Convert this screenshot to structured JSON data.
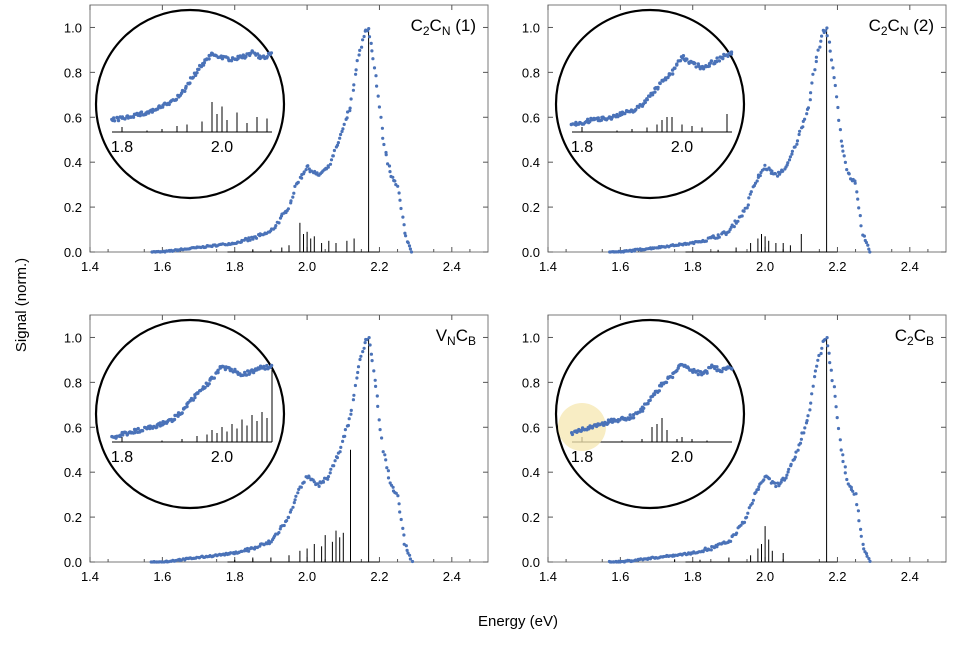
{
  "figure": {
    "xlabel": "Energy (eV)",
    "ylabel": "Signal (norm.)"
  },
  "chart_data": [
    {
      "type": "scatter",
      "id": "c2cn1",
      "title": "C₂C_N (1)",
      "title_main": "C",
      "title_sub1": "2",
      "title_mid": "C",
      "title_sub2": "N",
      "title_suffix": " (1)",
      "xlim": [
        1.4,
        2.5
      ],
      "ylim": [
        0,
        1.1
      ],
      "xticks": [
        "1.4",
        "1.6",
        "1.8",
        "2.0",
        "2.2",
        "2.4"
      ],
      "yticks": [
        "0.0",
        "0.2",
        "0.4",
        "0.6",
        "0.8",
        "1.0"
      ],
      "series": [
        {
          "name": "measured spectrum",
          "kind": "points",
          "x": [
            1.57,
            1.6,
            1.65,
            1.7,
            1.75,
            1.8,
            1.85,
            1.9,
            1.95,
            1.97,
            2.0,
            2.03,
            2.06,
            2.09,
            2.12,
            2.14,
            2.16,
            2.17,
            2.19,
            2.21,
            2.23,
            2.25,
            2.27,
            2.29
          ],
          "y": [
            0.0,
            0.0,
            0.01,
            0.02,
            0.03,
            0.04,
            0.06,
            0.09,
            0.2,
            0.3,
            0.38,
            0.34,
            0.38,
            0.5,
            0.65,
            0.85,
            0.98,
            1.0,
            0.78,
            0.5,
            0.35,
            0.3,
            0.08,
            0.0
          ]
        },
        {
          "name": "calculated lines",
          "kind": "sticks",
          "x": [
            1.85,
            1.9,
            1.93,
            1.95,
            1.98,
            1.99,
            2.0,
            2.01,
            2.02,
            2.04,
            2.06,
            2.08,
            2.11,
            2.13,
            2.17
          ],
          "y": [
            0.01,
            0.01,
            0.02,
            0.03,
            0.13,
            0.08,
            0.09,
            0.06,
            0.07,
            0.04,
            0.05,
            0.04,
            0.05,
            0.06,
            1.0
          ]
        }
      ],
      "inset": {
        "xticks": [
          "1.8",
          "2.0"
        ],
        "series": [
          {
            "name": "measured spectrum (zoom)",
            "kind": "points",
            "x": [
              1.78,
              1.8,
              1.82,
              1.84,
              1.86,
              1.88,
              1.9,
              1.92,
              1.94,
              1.96,
              1.98,
              2.0,
              2.02,
              2.04,
              2.06,
              2.08,
              2.1
            ],
            "y": [
              0.08,
              0.09,
              0.11,
              0.12,
              0.14,
              0.17,
              0.2,
              0.26,
              0.36,
              0.45,
              0.52,
              0.5,
              0.48,
              0.5,
              0.53,
              0.49,
              0.52
            ]
          },
          {
            "name": "calculated lines (zoom)",
            "kind": "sticks",
            "x": [
              1.85,
              1.88,
              1.91,
              1.93,
              1.96,
              1.98,
              1.99,
              2.0,
              2.01,
              2.03,
              2.05,
              2.07,
              2.09
            ],
            "y": [
              0.01,
              0.02,
              0.04,
              0.05,
              0.07,
              0.2,
              0.12,
              0.17,
              0.08,
              0.13,
              0.06,
              0.1,
              0.09
            ]
          }
        ]
      }
    },
    {
      "type": "scatter",
      "id": "c2cn2",
      "title": "C₂C_N (2)",
      "title_main": "C",
      "title_sub1": "2",
      "title_mid": "C",
      "title_sub2": "N",
      "title_suffix": " (2)",
      "xlim": [
        1.4,
        2.5
      ],
      "ylim": [
        0,
        1.1
      ],
      "xticks": [
        "1.4",
        "1.6",
        "1.8",
        "2.0",
        "2.2",
        "2.4"
      ],
      "yticks": [
        "0.0",
        "0.2",
        "0.4",
        "0.6",
        "0.8",
        "1.0"
      ],
      "series": [
        {
          "name": "measured spectrum",
          "kind": "points",
          "x": [
            1.57,
            1.6,
            1.65,
            1.7,
            1.75,
            1.8,
            1.85,
            1.9,
            1.95,
            1.97,
            2.0,
            2.03,
            2.06,
            2.09,
            2.12,
            2.14,
            2.16,
            2.17,
            2.19,
            2.21,
            2.23,
            2.25,
            2.27,
            2.29
          ],
          "y": [
            0.0,
            0.0,
            0.01,
            0.02,
            0.03,
            0.04,
            0.06,
            0.09,
            0.2,
            0.3,
            0.38,
            0.34,
            0.38,
            0.5,
            0.65,
            0.85,
            0.98,
            1.0,
            0.78,
            0.5,
            0.35,
            0.3,
            0.08,
            0.0
          ]
        },
        {
          "name": "calculated lines",
          "kind": "sticks",
          "x": [
            1.87,
            1.92,
            1.96,
            1.98,
            1.99,
            2.0,
            2.01,
            2.03,
            2.05,
            2.07,
            2.1,
            2.17
          ],
          "y": [
            0.01,
            0.02,
            0.04,
            0.06,
            0.08,
            0.07,
            0.05,
            0.04,
            0.04,
            0.03,
            0.08,
            1.0
          ]
        }
      ],
      "inset": {
        "xticks": [
          "1.8",
          "2.0"
        ],
        "series": [
          {
            "name": "measured spectrum (zoom)",
            "kind": "points",
            "x": [
              1.78,
              1.8,
              1.82,
              1.84,
              1.86,
              1.88,
              1.9,
              1.92,
              1.94,
              1.96,
              1.98,
              2.0,
              2.02,
              2.04,
              2.06,
              2.08,
              2.1
            ],
            "y": [
              0.05,
              0.06,
              0.08,
              0.09,
              0.1,
              0.12,
              0.14,
              0.18,
              0.26,
              0.33,
              0.4,
              0.5,
              0.46,
              0.43,
              0.46,
              0.5,
              0.52
            ]
          },
          {
            "name": "calculated lines (zoom)",
            "kind": "sticks",
            "x": [
              1.87,
              1.9,
              1.93,
              1.95,
              1.96,
              1.97,
              1.98,
              2.0,
              2.02,
              2.04,
              2.09
            ],
            "y": [
              0.01,
              0.02,
              0.03,
              0.05,
              0.08,
              0.1,
              0.1,
              0.05,
              0.04,
              0.03,
              0.12
            ]
          }
        ]
      }
    },
    {
      "type": "scatter",
      "id": "vncb",
      "title": "V_NC_B",
      "title_main": "V",
      "title_sub1": "N",
      "title_mid": "C",
      "title_sub2": "B",
      "title_suffix": "",
      "xlim": [
        1.4,
        2.5
      ],
      "ylim": [
        0,
        1.1
      ],
      "xticks": [
        "1.4",
        "1.6",
        "1.8",
        "2.0",
        "2.2",
        "2.4"
      ],
      "yticks": [
        "0.0",
        "0.2",
        "0.4",
        "0.6",
        "0.8",
        "1.0"
      ],
      "series": [
        {
          "name": "measured spectrum",
          "kind": "points",
          "x": [
            1.57,
            1.6,
            1.65,
            1.7,
            1.75,
            1.8,
            1.85,
            1.9,
            1.95,
            1.97,
            2.0,
            2.03,
            2.06,
            2.09,
            2.12,
            2.14,
            2.16,
            2.17,
            2.19,
            2.21,
            2.23,
            2.25,
            2.27,
            2.29
          ],
          "y": [
            0.0,
            0.0,
            0.01,
            0.02,
            0.03,
            0.04,
            0.06,
            0.09,
            0.2,
            0.3,
            0.38,
            0.34,
            0.38,
            0.5,
            0.65,
            0.85,
            0.98,
            1.0,
            0.78,
            0.5,
            0.35,
            0.3,
            0.08,
            0.0
          ]
        },
        {
          "name": "calculated lines",
          "kind": "sticks",
          "x": [
            1.8,
            1.85,
            1.9,
            1.95,
            1.98,
            2.0,
            2.02,
            2.04,
            2.05,
            2.07,
            2.08,
            2.09,
            2.1,
            2.12,
            2.17
          ],
          "y": [
            0.01,
            0.02,
            0.02,
            0.03,
            0.05,
            0.06,
            0.08,
            0.07,
            0.12,
            0.09,
            0.14,
            0.11,
            0.13,
            0.5,
            1.0
          ]
        }
      ],
      "inset": {
        "xticks": [
          "1.8",
          "2.0"
        ],
        "series": [
          {
            "name": "measured spectrum (zoom)",
            "kind": "points",
            "x": [
              1.78,
              1.8,
              1.82,
              1.84,
              1.86,
              1.88,
              1.9,
              1.92,
              1.94,
              1.96,
              1.98,
              2.0,
              2.02,
              2.04,
              2.06,
              2.08,
              2.1
            ],
            "y": [
              0.03,
              0.05,
              0.07,
              0.08,
              0.1,
              0.12,
              0.15,
              0.2,
              0.28,
              0.35,
              0.42,
              0.5,
              0.48,
              0.45,
              0.47,
              0.5,
              0.5
            ]
          },
          {
            "name": "calculated lines (zoom)",
            "kind": "sticks",
            "x": [
              1.88,
              1.92,
              1.95,
              1.97,
              1.98,
              1.99,
              2.0,
              2.01,
              2.02,
              2.03,
              2.04,
              2.05,
              2.06,
              2.07,
              2.08,
              2.09,
              2.1
            ],
            "y": [
              0.01,
              0.02,
              0.04,
              0.05,
              0.08,
              0.06,
              0.1,
              0.07,
              0.12,
              0.09,
              0.15,
              0.11,
              0.18,
              0.14,
              0.2,
              0.16,
              0.48
            ]
          }
        ]
      }
    },
    {
      "type": "scatter",
      "id": "c2cb",
      "title": "C₂C_B",
      "title_main": "C",
      "title_sub1": "2",
      "title_mid": "C",
      "title_sub2": "B",
      "title_suffix": "",
      "xlim": [
        1.4,
        2.5
      ],
      "ylim": [
        0,
        1.1
      ],
      "xticks": [
        "1.4",
        "1.6",
        "1.8",
        "2.0",
        "2.2",
        "2.4"
      ],
      "yticks": [
        "0.0",
        "0.2",
        "0.4",
        "0.6",
        "0.8",
        "1.0"
      ],
      "series": [
        {
          "name": "measured spectrum",
          "kind": "points",
          "x": [
            1.57,
            1.6,
            1.65,
            1.7,
            1.75,
            1.8,
            1.85,
            1.9,
            1.95,
            1.97,
            2.0,
            2.03,
            2.06,
            2.09,
            2.12,
            2.14,
            2.16,
            2.17,
            2.19,
            2.21,
            2.23,
            2.25,
            2.27,
            2.29
          ],
          "y": [
            0.0,
            0.0,
            0.01,
            0.02,
            0.03,
            0.04,
            0.06,
            0.09,
            0.2,
            0.3,
            0.38,
            0.34,
            0.38,
            0.5,
            0.65,
            0.85,
            0.98,
            1.0,
            0.78,
            0.5,
            0.35,
            0.3,
            0.08,
            0.0
          ]
        },
        {
          "name": "calculated lines",
          "kind": "sticks",
          "x": [
            1.75,
            1.82,
            1.9,
            1.96,
            1.98,
            1.99,
            2.0,
            2.01,
            2.02,
            2.05,
            2.17
          ],
          "y": [
            0.01,
            0.01,
            0.02,
            0.03,
            0.06,
            0.08,
            0.16,
            0.1,
            0.05,
            0.04,
            1.0
          ]
        }
      ],
      "inset": {
        "xticks": [
          "1.8",
          "2.0"
        ],
        "series": [
          {
            "name": "measured spectrum (zoom)",
            "kind": "points",
            "x": [
              1.78,
              1.8,
              1.82,
              1.84,
              1.86,
              1.88,
              1.9,
              1.92,
              1.94,
              1.96,
              1.98,
              2.0,
              2.02,
              2.04,
              2.06,
              2.08,
              2.1
            ],
            "y": [
              0.06,
              0.08,
              0.1,
              0.12,
              0.14,
              0.15,
              0.17,
              0.21,
              0.3,
              0.38,
              0.44,
              0.52,
              0.48,
              0.45,
              0.5,
              0.48,
              0.5
            ]
          },
          {
            "name": "calculated lines (zoom)",
            "kind": "sticks",
            "x": [
              1.88,
              1.92,
              1.94,
              1.95,
              1.96,
              1.97,
              1.99,
              2.02,
              2.05
            ],
            "y": [
              0.01,
              0.02,
              0.1,
              0.12,
              0.16,
              0.08,
              0.02,
              0.02,
              0.01
            ]
          }
        ],
        "highlight_x": 1.8
      }
    }
  ]
}
